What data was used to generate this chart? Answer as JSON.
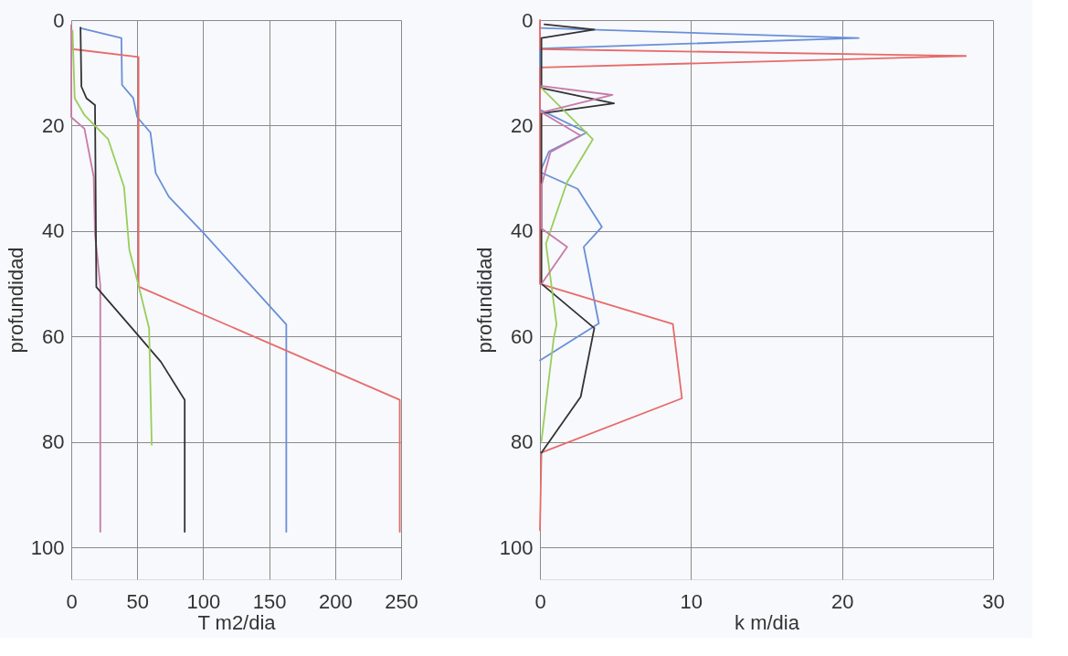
{
  "chart_data": [
    {
      "type": "line",
      "xlabel": "T m2/dia",
      "ylabel": "profundidad",
      "xlim": [
        0,
        250
      ],
      "xticks": [
        0,
        50,
        100,
        150,
        200,
        250
      ],
      "ylim": [
        106,
        0
      ],
      "yticks": [
        0,
        20,
        40,
        60,
        80,
        100
      ],
      "grid": true,
      "legend": false,
      "marker": "none",
      "line_style": "solid",
      "series": [
        {
          "color": "#6a8fd8",
          "x": [
            8,
            38,
            38.5,
            47,
            50,
            60,
            64,
            74,
            100,
            163,
            163
          ],
          "values": [
            1.6,
            3.4,
            12.3,
            14.8,
            18.4,
            21.3,
            29,
            33.5,
            40.3,
            57.7,
            97
          ]
        },
        {
          "color": "#e86a6a",
          "x": [
            0,
            1,
            51,
            51,
            249,
            249
          ],
          "values": [
            1,
            5.5,
            7,
            50.5,
            72,
            97
          ]
        },
        {
          "color": "#c77aa8",
          "x": [
            0,
            0,
            10,
            17,
            18,
            22,
            22
          ],
          "values": [
            1,
            18.4,
            20.6,
            29.7,
            40.6,
            50.3,
            97
          ]
        },
        {
          "color": "#333333",
          "x": [
            7,
            7.7,
            11.5,
            18,
            19,
            46,
            68,
            86,
            86
          ],
          "values": [
            1.4,
            12.6,
            14.8,
            16.1,
            50.6,
            58.4,
            64.8,
            72,
            97
          ]
        },
        {
          "color": "#9acd5a",
          "x": [
            1,
            2.6,
            10,
            28,
            40,
            44,
            51,
            59,
            61
          ],
          "values": [
            2,
            14.8,
            18,
            22.6,
            31.6,
            43.5,
            50.3,
            58.4,
            80.5
          ]
        }
      ]
    },
    {
      "type": "line",
      "xlabel": "k  m/dia",
      "ylabel": "profundidad",
      "xlim": [
        0,
        30
      ],
      "xticks": [
        0,
        10,
        20,
        30
      ],
      "ylim": [
        106,
        0
      ],
      "yticks": [
        0,
        20,
        40,
        60,
        80,
        100
      ],
      "grid": true,
      "legend": false,
      "marker": "none",
      "line_style": "solid",
      "series": [
        {
          "color": "#6a8fd8",
          "x": [
            0,
            21.1,
            0,
            0,
            3.1,
            0.6,
            0,
            2.5,
            4.1,
            2.9,
            3.9,
            0
          ],
          "values": [
            1.5,
            3.4,
            5.4,
            17,
            21.3,
            24.9,
            28.8,
            32,
            39.2,
            43,
            57.5,
            64.5
          ]
        },
        {
          "color": "#e86a6a",
          "x": [
            0,
            0,
            28.2,
            0,
            0,
            8.8,
            9.4,
            0.1,
            0
          ],
          "values": [
            0,
            5.5,
            6.8,
            9,
            50,
            57.6,
            71.7,
            82,
            96.7
          ]
        },
        {
          "color": "#333333",
          "x": [
            0.3,
            3.6,
            0.1,
            0.1,
            4.9,
            0.1,
            0.1,
            3.6,
            2.7,
            0.1
          ],
          "values": [
            0.8,
            1.8,
            3.4,
            12.9,
            15.8,
            17.7,
            50,
            58.4,
            71.4,
            82
          ]
        },
        {
          "color": "#9acd5a",
          "x": [
            0.1,
            3.5,
            1.8,
            0.4,
            1.1,
            0.9,
            0.1
          ],
          "values": [
            12.9,
            22.6,
            30.7,
            42.4,
            57.7,
            60.6,
            79.8
          ]
        },
        {
          "color": "#c77aa8",
          "x": [
            0.1,
            4.8,
            0.1,
            2.7,
            0.7,
            0.1,
            0.1,
            1.8,
            0.1
          ],
          "values": [
            12.5,
            14.2,
            17.5,
            21.9,
            25,
            31.4,
            39.5,
            43,
            50
          ]
        }
      ]
    }
  ]
}
